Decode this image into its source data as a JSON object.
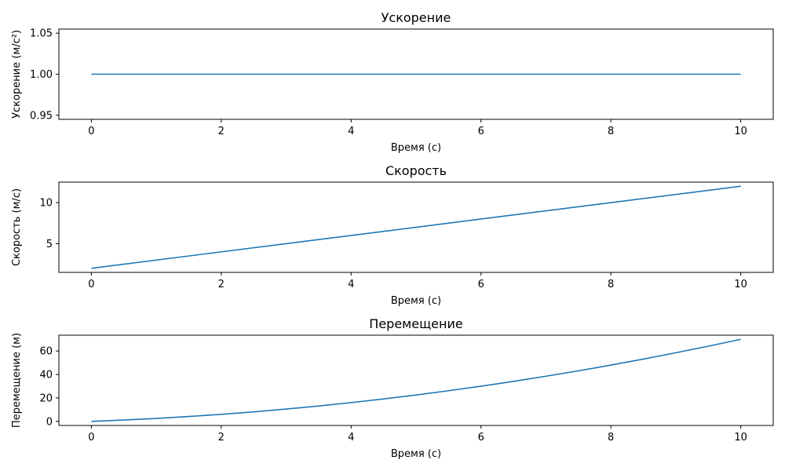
{
  "chart_data": [
    {
      "type": "line",
      "title": "Ускорение",
      "xlabel": "Время (с)",
      "ylabel": "Ускорение (м/с²)",
      "xlim": [
        -0.5,
        10.5
      ],
      "ylim": [
        0.945,
        1.055
      ],
      "xticks": [
        0,
        2,
        4,
        6,
        8,
        10
      ],
      "yticks": [
        0.95,
        1.0,
        1.05
      ],
      "ytick_labels": [
        "0.95",
        "1.00",
        "1.05"
      ],
      "grid": false,
      "series": [
        {
          "x": [
            0,
            10
          ],
          "values": [
            1.0,
            1.0
          ]
        }
      ]
    },
    {
      "type": "line",
      "title": "Скорость",
      "xlabel": "Время (с)",
      "ylabel": "Скорость (м/с)",
      "xlim": [
        -0.5,
        10.5
      ],
      "ylim": [
        1.5,
        12.5
      ],
      "xticks": [
        0,
        2,
        4,
        6,
        8,
        10
      ],
      "yticks": [
        5,
        10
      ],
      "ytick_labels": [
        "5",
        "10"
      ],
      "grid": false,
      "series": [
        {
          "x": [
            0,
            10
          ],
          "values": [
            2,
            12
          ]
        }
      ]
    },
    {
      "type": "line",
      "title": "Перемещение",
      "xlabel": "Время (с)",
      "ylabel": "Перемещение (м)",
      "xlim": [
        -0.5,
        10.5
      ],
      "ylim": [
        -3.5,
        73.5
      ],
      "xticks": [
        0,
        2,
        4,
        6,
        8,
        10
      ],
      "yticks": [
        0,
        20,
        40,
        60
      ],
      "ytick_labels": [
        "0",
        "20",
        "40",
        "60"
      ],
      "grid": false,
      "series": [
        {
          "x": [
            0,
            0.5,
            1,
            1.5,
            2,
            2.5,
            3,
            3.5,
            4,
            4.5,
            5,
            5.5,
            6,
            6.5,
            7,
            7.5,
            8,
            8.5,
            9,
            9.5,
            10
          ],
          "values": [
            0,
            1.125,
            2.5,
            4.125,
            6,
            8.125,
            10.5,
            13.125,
            16,
            19.125,
            22.5,
            26.125,
            30,
            34.125,
            38.5,
            43.125,
            48,
            53.125,
            58.5,
            64.125,
            70
          ]
        }
      ]
    }
  ],
  "colors": {
    "series": "#1f77b4",
    "axes": "#000000",
    "background": "#ffffff"
  }
}
